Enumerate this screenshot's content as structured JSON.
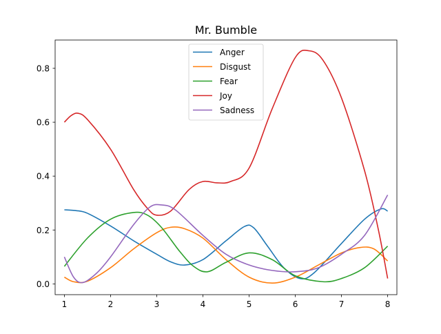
{
  "chart_data": {
    "type": "line",
    "title": "Mr. Bumble",
    "xlabel": "",
    "ylabel": "",
    "xlim": [
      0.8,
      8.2
    ],
    "ylim": [
      -0.04,
      0.905
    ],
    "xticks": [
      1,
      2,
      3,
      4,
      5,
      6,
      7,
      8
    ],
    "xtick_labels": [
      "1",
      "2",
      "3",
      "4",
      "5",
      "6",
      "7",
      "8"
    ],
    "yticks": [
      0.0,
      0.2,
      0.4,
      0.6,
      0.8
    ],
    "ytick_labels": [
      "0.0",
      "0.2",
      "0.4",
      "0.6",
      "0.8"
    ],
    "grid": false,
    "legend_position": "top-center",
    "series": [
      {
        "name": "Anger",
        "color": "#1f77b4",
        "points": [
          [
            1.0,
            0.275
          ],
          [
            1.25,
            0.272
          ],
          [
            1.5,
            0.262
          ],
          [
            2.0,
            0.215
          ],
          [
            2.5,
            0.16
          ],
          [
            3.0,
            0.11
          ],
          [
            3.3,
            0.082
          ],
          [
            3.6,
            0.07
          ],
          [
            4.0,
            0.09
          ],
          [
            4.5,
            0.16
          ],
          [
            4.9,
            0.213
          ],
          [
            5.1,
            0.208
          ],
          [
            5.4,
            0.14
          ],
          [
            5.75,
            0.06
          ],
          [
            6.1,
            0.02
          ],
          [
            6.4,
            0.04
          ],
          [
            7.0,
            0.15
          ],
          [
            7.5,
            0.24
          ],
          [
            7.85,
            0.278
          ],
          [
            8.0,
            0.27
          ]
        ]
      },
      {
        "name": "Disgust",
        "color": "#ff7f0e",
        "points": [
          [
            1.0,
            0.025
          ],
          [
            1.2,
            0.008
          ],
          [
            1.5,
            0.01
          ],
          [
            2.0,
            0.06
          ],
          [
            2.5,
            0.13
          ],
          [
            3.0,
            0.19
          ],
          [
            3.3,
            0.21
          ],
          [
            3.6,
            0.205
          ],
          [
            4.0,
            0.17
          ],
          [
            4.5,
            0.09
          ],
          [
            5.0,
            0.025
          ],
          [
            5.5,
            0.003
          ],
          [
            6.0,
            0.025
          ],
          [
            6.5,
            0.07
          ],
          [
            7.0,
            0.115
          ],
          [
            7.4,
            0.135
          ],
          [
            7.7,
            0.13
          ],
          [
            8.0,
            0.085
          ]
        ]
      },
      {
        "name": "Fear",
        "color": "#2ca02c",
        "points": [
          [
            1.0,
            0.065
          ],
          [
            1.5,
            0.17
          ],
          [
            2.0,
            0.24
          ],
          [
            2.5,
            0.265
          ],
          [
            2.8,
            0.255
          ],
          [
            3.1,
            0.21
          ],
          [
            3.5,
            0.12
          ],
          [
            3.8,
            0.065
          ],
          [
            4.1,
            0.045
          ],
          [
            4.5,
            0.08
          ],
          [
            5.0,
            0.115
          ],
          [
            5.5,
            0.09
          ],
          [
            6.0,
            0.03
          ],
          [
            6.6,
            0.008
          ],
          [
            7.0,
            0.02
          ],
          [
            7.5,
            0.06
          ],
          [
            8.0,
            0.14
          ]
        ]
      },
      {
        "name": "Joy",
        "color": "#d62728",
        "points": [
          [
            1.0,
            0.6
          ],
          [
            1.15,
            0.625
          ],
          [
            1.3,
            0.633
          ],
          [
            1.5,
            0.61
          ],
          [
            2.0,
            0.5
          ],
          [
            2.5,
            0.35
          ],
          [
            2.8,
            0.28
          ],
          [
            3.0,
            0.255
          ],
          [
            3.3,
            0.27
          ],
          [
            3.7,
            0.35
          ],
          [
            4.0,
            0.38
          ],
          [
            4.3,
            0.375
          ],
          [
            4.6,
            0.38
          ],
          [
            5.0,
            0.43
          ],
          [
            5.5,
            0.65
          ],
          [
            6.0,
            0.84
          ],
          [
            6.3,
            0.865
          ],
          [
            6.6,
            0.83
          ],
          [
            7.0,
            0.69
          ],
          [
            7.5,
            0.42
          ],
          [
            7.8,
            0.2
          ],
          [
            8.0,
            0.02
          ]
        ]
      },
      {
        "name": "Sadness",
        "color": "#9467bd",
        "points": [
          [
            1.0,
            0.1
          ],
          [
            1.2,
            0.025
          ],
          [
            1.4,
            0.005
          ],
          [
            1.7,
            0.04
          ],
          [
            2.0,
            0.1
          ],
          [
            2.5,
            0.22
          ],
          [
            2.85,
            0.285
          ],
          [
            3.1,
            0.293
          ],
          [
            3.4,
            0.275
          ],
          [
            4.0,
            0.18
          ],
          [
            4.5,
            0.11
          ],
          [
            5.0,
            0.07
          ],
          [
            5.5,
            0.05
          ],
          [
            6.0,
            0.045
          ],
          [
            6.5,
            0.06
          ],
          [
            7.0,
            0.11
          ],
          [
            7.5,
            0.18
          ],
          [
            8.0,
            0.33
          ]
        ]
      }
    ]
  }
}
